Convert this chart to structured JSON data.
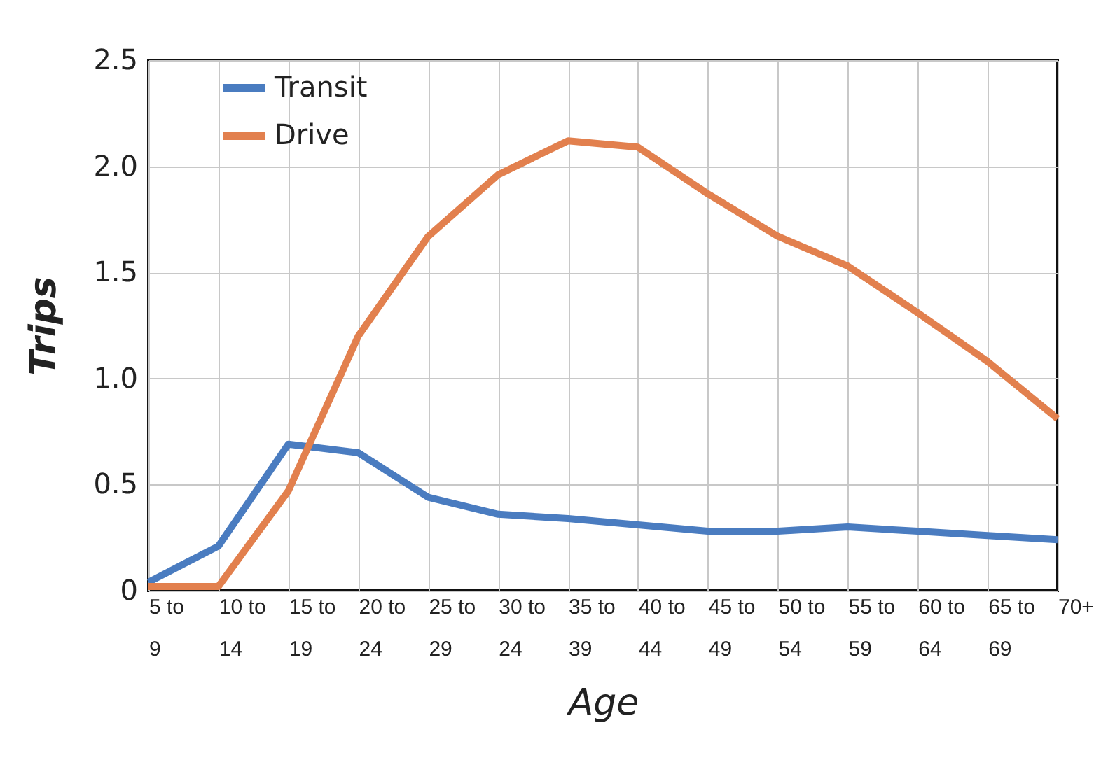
{
  "chart_data": {
    "type": "line",
    "xlabel": "Age",
    "ylabel": "Trips",
    "categories": [
      "5 to 9",
      "10 to 14",
      "15 to 19",
      "20 to 24",
      "25 to 29",
      "30 to 24",
      "35 to 39",
      "40 to 44",
      "45 to 49",
      "50 to 54",
      "55 to 59",
      "60 to 64",
      "65 to 69",
      "70+"
    ],
    "series": [
      {
        "name": "Transit",
        "color": "#4a7cc0",
        "values": [
          0.04,
          0.21,
          0.69,
          0.65,
          0.44,
          0.36,
          0.34,
          0.31,
          0.28,
          0.28,
          0.3,
          0.28,
          0.26,
          0.24
        ]
      },
      {
        "name": "Drive",
        "color": "#e2804e",
        "values": [
          0.02,
          0.02,
          0.47,
          1.2,
          1.67,
          1.96,
          2.12,
          2.09,
          1.87,
          1.67,
          1.53,
          1.31,
          1.08,
          0.81
        ]
      }
    ],
    "ylim": [
      0,
      2.5
    ],
    "yticks": [
      0,
      {
        "value": 0.5,
        "label": "0.5"
      },
      {
        "value": 1,
        "label": "1.0"
      },
      {
        "value": 1.5,
        "label": "1.5"
      },
      {
        "value": 2,
        "label": "2.0"
      },
      {
        "value": 2.5,
        "label": "2.5"
      }
    ],
    "grid": true,
    "legend": "top left",
    "line_style": "solid",
    "marker": "none"
  }
}
